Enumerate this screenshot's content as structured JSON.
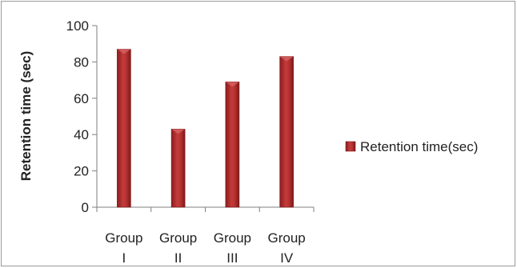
{
  "chart_data": {
    "type": "bar",
    "title": "",
    "xlabel": "",
    "ylabel": "Retention time (sec)",
    "ylim": [
      0,
      100
    ],
    "yticks": [
      0,
      20,
      40,
      60,
      80,
      100
    ],
    "categories": [
      [
        "Group",
        "I"
      ],
      [
        "Group",
        "II"
      ],
      [
        "Group",
        "III"
      ],
      [
        "Group",
        "IV"
      ]
    ],
    "series": [
      {
        "name": "Retention time(sec)",
        "values": [
          87,
          43,
          69,
          83
        ]
      }
    ],
    "grid": false,
    "legend": "right",
    "colors": {
      "bar_dark": "#8e1c1c",
      "bar_mid": "#c43c3c",
      "bar_light": "#d96a6a",
      "axis": "#7f7f7f",
      "frame": "#9a9a9a"
    }
  }
}
